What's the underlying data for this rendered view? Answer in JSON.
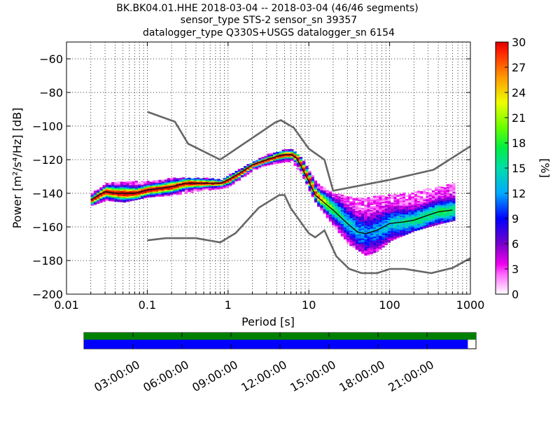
{
  "title": {
    "line1": "BK.BK04.01.HHE   2018-03-04 -- 2018-03-04  (46/46 segments)",
    "line2": "sensor_type STS-2 sensor_sn 39357",
    "line3": "datalogger_type Q330S+USGS datalogger_sn 6154"
  },
  "chart_data": {
    "type": "heatmap",
    "xlabel": "Period [s]",
    "ylabel": "Power [m²/s⁴/Hz] [dB]",
    "xscale": "log",
    "xlim": [
      0.01,
      1000
    ],
    "ylim": [
      -200,
      -50
    ],
    "x_tick_labels": [
      "0.01",
      "0.1",
      "1",
      "10",
      "100",
      "1000"
    ],
    "x_tick_values": [
      0.01,
      0.1,
      1,
      10,
      100,
      1000
    ],
    "y_ticks": [
      -60,
      -80,
      -100,
      -120,
      -140,
      -160,
      -180,
      -200
    ],
    "grid": "dotted-vertical-and-horizontal",
    "colorbar": {
      "label": "[%]",
      "min": 0,
      "max": 30,
      "ticks": [
        0,
        3,
        6,
        9,
        12,
        15,
        18,
        21,
        24,
        27,
        30
      ]
    },
    "noise_models": [
      {
        "name": "NHNM",
        "x": [
          0.1,
          0.22,
          0.32,
          0.8,
          3.8,
          4.5,
          6.5,
          10,
          15.6,
          20,
          100,
          350,
          1000
        ],
        "y": [
          -91.5,
          -97.4,
          -110.5,
          -120.0,
          -98.0,
          -96.5,
          -101.0,
          -113.5,
          -120.0,
          -138.5,
          -132.0,
          -126.0,
          -112.0
        ]
      },
      {
        "name": "NLNM",
        "x": [
          0.1,
          0.17,
          0.4,
          0.8,
          1.24,
          2.4,
          4.3,
          5,
          6,
          10,
          12,
          15.6,
          21.9,
          31.6,
          45,
          70,
          101,
          154,
          328,
          600,
          1000
        ],
        "y": [
          -168.0,
          -166.7,
          -166.7,
          -169.2,
          -163.7,
          -148.6,
          -141.1,
          -141.1,
          -149.0,
          -163.8,
          -166.2,
          -162.1,
          -177.5,
          -185.0,
          -187.5,
          -187.5,
          -185.0,
          -185.0,
          -187.5,
          -184.4,
          -178.6
        ]
      }
    ],
    "median_curve": {
      "x": [
        0.02,
        0.025,
        0.03,
        0.04,
        0.05,
        0.07,
        0.1,
        0.15,
        0.2,
        0.3,
        0.5,
        0.8,
        1.0,
        1.5,
        2,
        3,
        4,
        5,
        6,
        7,
        8,
        10,
        12,
        15,
        20,
        30,
        40,
        50,
        70,
        100,
        150,
        200,
        300,
        400,
        600
      ],
      "y": [
        -144,
        -141,
        -139,
        -140,
        -140,
        -140,
        -138,
        -137,
        -136,
        -134,
        -134,
        -134,
        -132,
        -127,
        -123,
        -120,
        -118,
        -117,
        -117,
        -119,
        -124,
        -133,
        -141,
        -145,
        -150,
        -158,
        -163,
        -164,
        -162,
        -158,
        -157,
        -156,
        -153,
        -151,
        -150
      ]
    },
    "spread": {
      "x": [
        0.02,
        0.03,
        0.05,
        0.1,
        0.2,
        0.5,
        0.8,
        1.0,
        2,
        3,
        5,
        6,
        8,
        10,
        12,
        15,
        20,
        30,
        50,
        70,
        100,
        200,
        400,
        600
      ],
      "upper": [
        -140,
        -134,
        -133,
        -133,
        -131,
        -131,
        -132,
        -129,
        -121,
        -117,
        -114,
        -114,
        -119,
        -127,
        -134,
        -137,
        -140,
        -142,
        -143,
        -141,
        -141,
        -139,
        -136,
        -134
      ],
      "lower": [
        -147,
        -144,
        -145,
        -142,
        -141,
        -138,
        -137,
        -136,
        -126,
        -123,
        -121,
        -121,
        -129,
        -139,
        -146,
        -152,
        -160,
        -170,
        -177,
        -174,
        -168,
        -162,
        -158,
        -156
      ]
    },
    "scatter_top": {
      "x": [
        0.03,
        0.04,
        0.05,
        0.07,
        0.1,
        0.15,
        20,
        25,
        30,
        40,
        50,
        70,
        100,
        150,
        200,
        300,
        400,
        600
      ],
      "y": [
        -127,
        -128,
        -129,
        -130,
        -128,
        -130,
        -124,
        -127,
        -131,
        -134,
        -137,
        -138,
        -137,
        -136,
        -135,
        -133,
        -129,
        -128
      ]
    },
    "time_bar": {
      "tick_labels": [
        "03:00:00",
        "06:00:00",
        "09:00:00",
        "12:00:00",
        "15:00:00",
        "18:00:00",
        "21:00:00"
      ],
      "tick_hours": [
        3,
        6,
        9,
        12,
        15,
        18,
        21
      ],
      "range_hours": [
        0,
        24
      ],
      "data_coverage": [
        0,
        24
      ],
      "processed_coverage": [
        0,
        23.5
      ],
      "coverage_color": "#008000",
      "processed_color": "#0000ff"
    }
  }
}
